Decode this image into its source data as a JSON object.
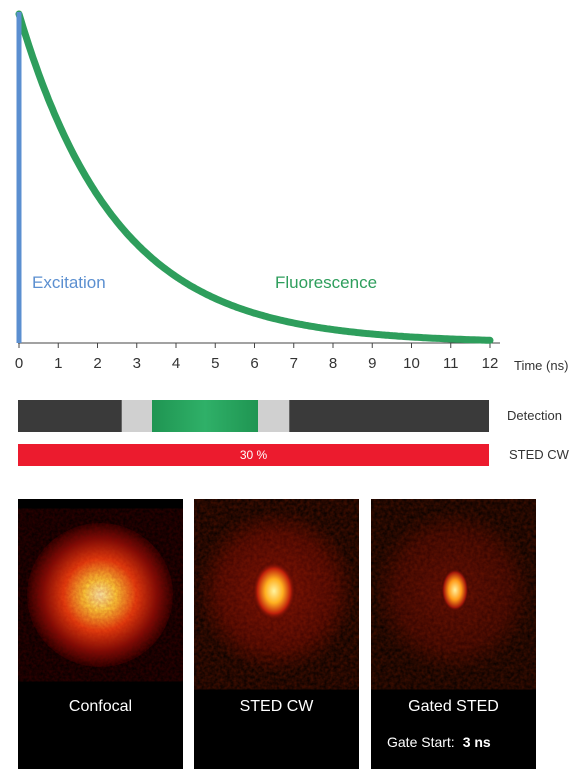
{
  "chart_data": {
    "type": "line",
    "title": "",
    "xlabel": "Time (ns)",
    "ylabel": "",
    "xlim": [
      0,
      12
    ],
    "x_ticks": [
      "0",
      "1",
      "2",
      "3",
      "4",
      "5",
      "6",
      "7",
      "8",
      "9",
      "10",
      "11",
      "12"
    ],
    "series": [
      {
        "name": "Excitation",
        "color": "#5b8fd0",
        "x": [
          0,
          0
        ],
        "y": [
          1,
          0
        ]
      },
      {
        "name": "Fluorescence",
        "color": "#2e9e5c",
        "decay_constant_ns": 2.5,
        "x": [
          0,
          1,
          2,
          3,
          4,
          5,
          6,
          7,
          8,
          9,
          10,
          11,
          12
        ],
        "y": [
          1.0,
          0.67,
          0.45,
          0.3,
          0.2,
          0.14,
          0.09,
          0.06,
          0.04,
          0.027,
          0.018,
          0.012,
          0.008
        ]
      }
    ]
  },
  "detection": {
    "label": "Detection",
    "gate_start_ns": 2.6,
    "gate_green_start_ns": 3.4,
    "gate_green_end_ns": 6.1,
    "gate_end_ns": 6.9
  },
  "sted": {
    "label": "STED CW",
    "value": "30 %"
  },
  "panels": [
    {
      "title": "Confocal"
    },
    {
      "title": "STED CW"
    },
    {
      "title": "Gated STED",
      "gate_label": "Gate Start:",
      "gate_value": "3 ns"
    }
  ]
}
